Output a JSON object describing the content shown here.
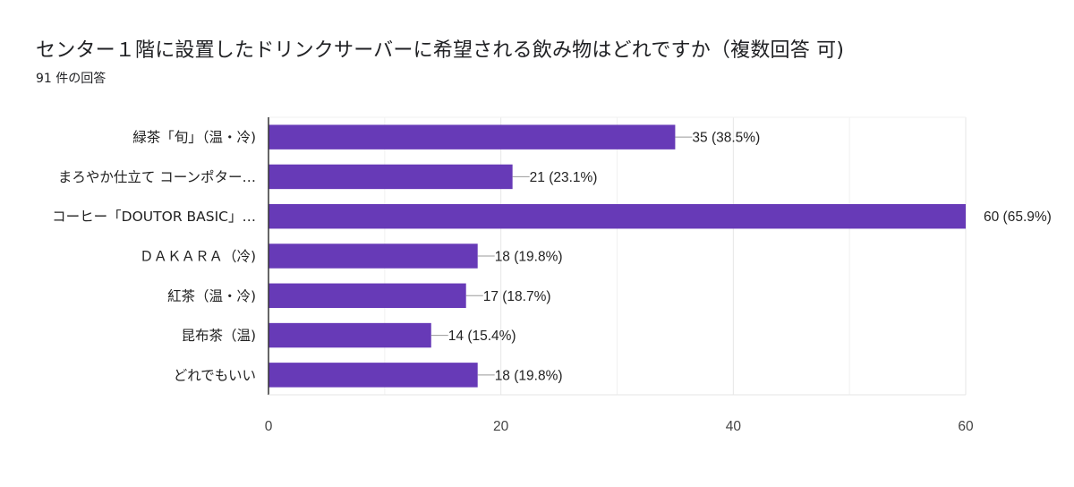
{
  "header": {
    "title": "センター１階に設置したドリンクサーバーに希望される飲み物はどれですか（複数回答 可)",
    "response_count": "91 件の回答"
  },
  "chart_data": {
    "type": "bar",
    "orientation": "horizontal",
    "title": "センター１階に設置したドリンクサーバーに希望される飲み物はどれですか（複数回答 可)",
    "subtitle": "91 件の回答",
    "categories": [
      "緑茶「旬」（温・冷)",
      "まろやか仕立て コーンポター…",
      "コーヒー「DOUTOR BASIC」…",
      "ＤＡＫＡＲＡ（冷)",
      "紅茶（温・冷)",
      "昆布茶（温)",
      "どれでもいい"
    ],
    "values": [
      35,
      21,
      60,
      18,
      17,
      14,
      18
    ],
    "data_labels": [
      "35 (38.5%)",
      "21 (23.1%)",
      "60 (65.9%)",
      "18 (19.8%)",
      "17 (18.7%)",
      "14 (15.4%)",
      "18 (19.8%)"
    ],
    "xlim": [
      0,
      60
    ],
    "x_ticks": [
      0,
      20,
      40,
      60
    ],
    "x_tick_labels": [
      "0",
      "20",
      "40",
      "60"
    ],
    "minor_grid_step": 10,
    "grid": true,
    "xlabel": "",
    "ylabel": "",
    "bar_color": "#673ab7",
    "legend": "none"
  }
}
